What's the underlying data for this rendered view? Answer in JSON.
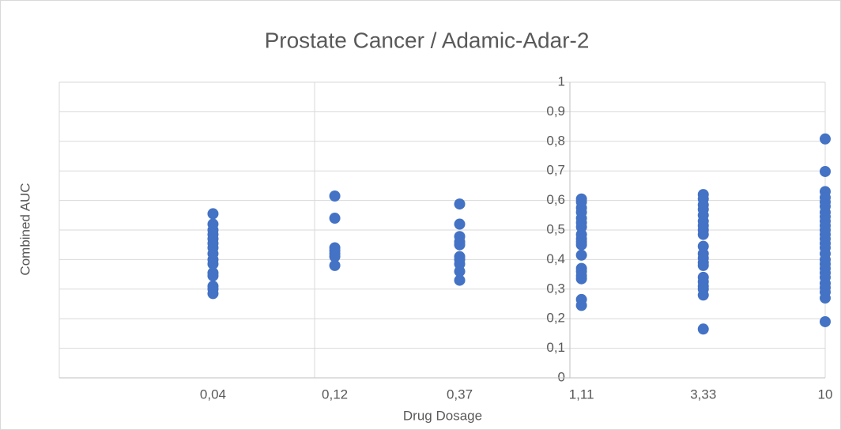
{
  "chart_data": {
    "type": "scatter",
    "title": "Prostate Cancer / Adamic-Adar-2",
    "x_label": "Drug Dosage",
    "y_label": "Combined AUC",
    "xscale": "log",
    "xlim": [
      0.01,
      10
    ],
    "ylim": [
      0,
      1
    ],
    "y_axis_crosses": 1,
    "grid": true,
    "xticks": [
      {
        "value": 0.04,
        "label": "0,04"
      },
      {
        "value": 0.12,
        "label": "0,12"
      },
      {
        "value": 0.37,
        "label": "0,37"
      },
      {
        "value": 1.11,
        "label": "1,11"
      },
      {
        "value": 3.33,
        "label": "3,33"
      },
      10
    ],
    "yticks": [
      0,
      {
        "value": 0.1,
        "label": "0,1"
      },
      {
        "value": 0.2,
        "label": "0,2"
      },
      {
        "value": 0.3,
        "label": "0,3"
      },
      {
        "value": 0.4,
        "label": "0,4"
      },
      {
        "value": 0.5,
        "label": "0,5"
      },
      {
        "value": 0.6,
        "label": "0,6"
      },
      {
        "value": 0.7,
        "label": "0,7"
      },
      {
        "value": 0.8,
        "label": "0,8"
      },
      {
        "value": 0.9,
        "label": "0,9"
      },
      1
    ],
    "color": "#4472c4",
    "x": [
      0.04,
      0.04,
      0.04,
      0.04,
      0.04,
      0.04,
      0.04,
      0.04,
      0.04,
      0.04,
      0.04,
      0.04,
      0.04,
      0.04,
      0.04,
      0.12,
      0.12,
      0.12,
      0.12,
      0.12,
      0.12,
      0.12,
      0.37,
      0.37,
      0.37,
      0.37,
      0.37,
      0.37,
      0.37,
      0.37,
      0.37,
      0.37,
      1.11,
      1.11,
      1.11,
      1.11,
      1.11,
      1.11,
      1.11,
      1.11,
      1.11,
      1.11,
      1.11,
      1.11,
      1.11,
      1.11,
      1.11,
      1.11,
      1.11,
      1.11,
      3.33,
      3.33,
      3.33,
      3.33,
      3.33,
      3.33,
      3.33,
      3.33,
      3.33,
      3.33,
      3.33,
      3.33,
      3.33,
      3.33,
      3.33,
      3.33,
      3.33,
      3.33,
      3.33,
      3.33,
      10,
      10,
      10,
      10,
      10,
      10,
      10,
      10,
      10,
      10,
      10,
      10,
      10,
      10,
      10,
      10,
      10,
      10,
      10,
      10,
      10,
      10,
      10,
      10,
      10,
      10
    ],
    "y": [
      0.555,
      0.52,
      0.5,
      0.485,
      0.47,
      0.455,
      0.44,
      0.42,
      0.4,
      0.385,
      0.355,
      0.345,
      0.31,
      0.3,
      0.285,
      0.615,
      0.54,
      0.44,
      0.43,
      0.42,
      0.41,
      0.38,
      0.588,
      0.52,
      0.478,
      0.46,
      0.45,
      0.41,
      0.4,
      0.385,
      0.36,
      0.33,
      0.605,
      0.595,
      0.575,
      0.56,
      0.54,
      0.525,
      0.51,
      0.485,
      0.47,
      0.46,
      0.45,
      0.415,
      0.37,
      0.36,
      0.345,
      0.335,
      0.265,
      0.245,
      0.62,
      0.605,
      0.585,
      0.57,
      0.55,
      0.53,
      0.515,
      0.5,
      0.485,
      0.445,
      0.42,
      0.405,
      0.39,
      0.38,
      0.34,
      0.325,
      0.31,
      0.3,
      0.28,
      0.165,
      0.808,
      0.698,
      0.63,
      0.61,
      0.595,
      0.58,
      0.56,
      0.545,
      0.53,
      0.515,
      0.5,
      0.485,
      0.47,
      0.455,
      0.44,
      0.42,
      0.4,
      0.385,
      0.37,
      0.355,
      0.34,
      0.32,
      0.305,
      0.29,
      0.27,
      0.19
    ]
  }
}
